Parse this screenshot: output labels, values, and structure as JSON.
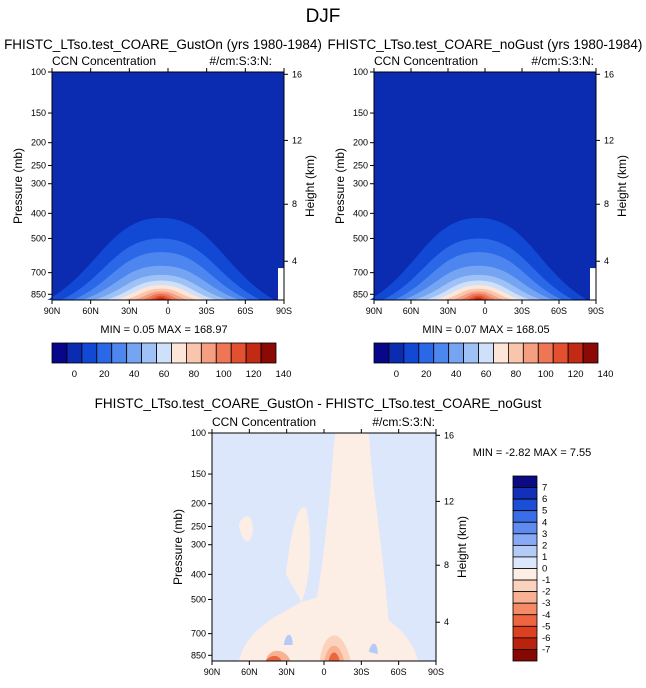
{
  "figure_title": "DJF",
  "panels": [
    {
      "title": "FHISTC_LTso.test_COARE_GustOn (yrs 1980-1984)",
      "left_label": "CCN Concentration",
      "right_label": "#/cm:S:3:N:",
      "stats": "MIN =  0.05  MAX = 168.97"
    },
    {
      "title": "FHISTC_LTso.test_COARE_noGust (yrs 1980-1984)",
      "left_label": "CCN Concentration",
      "right_label": "#/cm:S:3:N:",
      "stats": "MIN =  0.07  MAX = 168.05"
    },
    {
      "title": "FHISTC_LTso.test_COARE_GustOn - FHISTC_LTso.test_COARE_noGust",
      "left_label": "CCN Concentration",
      "right_label": "#/cm:S:3:N:",
      "stats": "MIN = -2.82  MAX =   7.55"
    }
  ],
  "axes": {
    "ylabel": "Pressure (mb)",
    "ylabel_right": "Height (km)",
    "x_ticks": [
      "90N",
      "60N",
      "30N",
      "0",
      "30S",
      "60S",
      "90S"
    ],
    "p_ticks": [
      "100",
      "150",
      "200",
      "250",
      "300",
      "400",
      "500",
      "700",
      "850"
    ],
    "h_ticks": [
      "16",
      "12",
      "8",
      "4"
    ]
  },
  "colorbar_top": {
    "colors": [
      "#08078a",
      "#0b2cb0",
      "#1249d4",
      "#2a68e8",
      "#4d86ef",
      "#74a4f2",
      "#9fc2f6",
      "#cfe0fb",
      "#fde6d8",
      "#f9c5ad",
      "#f59e80",
      "#ef7654",
      "#e2502f",
      "#c32a13",
      "#8b0a05"
    ],
    "labels": [
      "0",
      "20",
      "40",
      "60",
      "80",
      "100",
      "120",
      "140"
    ]
  },
  "colorbar_diff": {
    "colors": [
      "#0a0a85",
      "#1230b8",
      "#1c4ed6",
      "#3a6de6",
      "#5f8aef",
      "#88a9f3",
      "#b5cbf7",
      "#dde7fb",
      "#fdeee5",
      "#fbd3bd",
      "#f8b293",
      "#f48b66",
      "#ee653f",
      "#dd4021",
      "#b9220d",
      "#870803"
    ],
    "labels": [
      "7",
      "6",
      "5",
      "4",
      "3",
      "2",
      "1",
      "0",
      "-1",
      "-2",
      "-3",
      "-4",
      "-5",
      "-6",
      "-7"
    ]
  },
  "chart_data": [
    {
      "type": "contour",
      "title": "FHISTC_LTso.test_COARE_GustOn (yrs 1980-1984)",
      "variable": "CCN Concentration",
      "units": "#/cm:S:3:N:",
      "x": [
        "90N",
        "60N",
        "30N",
        "0",
        "30S",
        "60S",
        "90S"
      ],
      "ylabel": "Pressure (mb)",
      "min": 0.05,
      "max": 168.97,
      "levels": [
        0,
        10,
        20,
        30,
        40,
        50,
        60,
        70,
        80,
        90,
        100,
        110,
        120,
        130,
        140
      ]
    },
    {
      "type": "contour",
      "title": "FHISTC_LTso.test_COARE_noGust (yrs 1980-1984)",
      "variable": "CCN Concentration",
      "units": "#/cm:S:3:N:",
      "x": [
        "90N",
        "60N",
        "30N",
        "0",
        "30S",
        "60S",
        "90S"
      ],
      "ylabel": "Pressure (mb)",
      "min": 0.07,
      "max": 168.05,
      "levels": [
        0,
        10,
        20,
        30,
        40,
        50,
        60,
        70,
        80,
        90,
        100,
        110,
        120,
        130,
        140
      ]
    },
    {
      "type": "contour",
      "title": "FHISTC_LTso.test_COARE_GustOn - FHISTC_LTso.test_COARE_noGust",
      "variable": "CCN Concentration",
      "units": "#/cm:S:3:N:",
      "x": [
        "90N",
        "60N",
        "30N",
        "0",
        "30S",
        "60S",
        "90S"
      ],
      "ylabel": "Pressure (mb)",
      "min": -2.82,
      "max": 7.55,
      "levels": [
        -7,
        -6,
        -5,
        -4,
        -3,
        -2,
        -1,
        0,
        1,
        2,
        3,
        4,
        5,
        6,
        7
      ]
    }
  ]
}
